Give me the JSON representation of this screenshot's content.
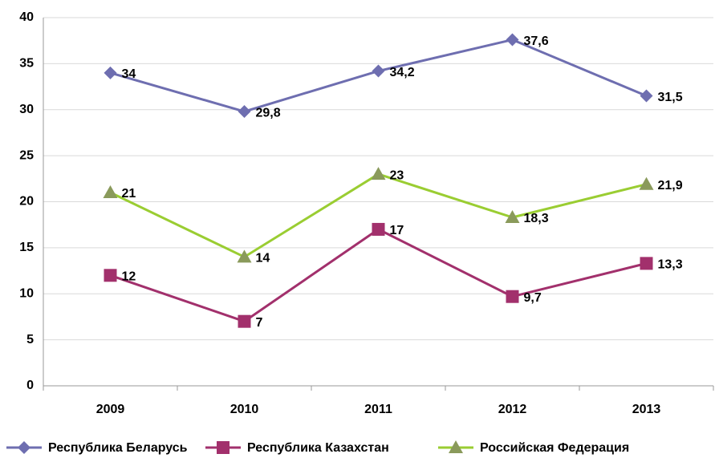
{
  "chart_data": {
    "type": "line",
    "categories": [
      "2009",
      "2010",
      "2011",
      "2012",
      "2013"
    ],
    "series": [
      {
        "name": "Республика Беларусь",
        "color": "#6e6eb0",
        "marker": "diamond",
        "values": [
          34,
          29.8,
          34.2,
          37.6,
          31.5
        ],
        "value_labels": [
          "34",
          "29,8",
          "34,2",
          "37,6",
          "31,5"
        ]
      },
      {
        "name": "Республика Казахстан",
        "color": "#a2306c",
        "marker": "square",
        "values": [
          12,
          7,
          17,
          9.7,
          13.3
        ],
        "value_labels": [
          "12",
          "7",
          "17",
          "9,7",
          "13,3"
        ]
      },
      {
        "name": "Российская Федерация",
        "color": "#9acd32",
        "marker": "triangle",
        "marker_color": "#8a9a5b",
        "values": [
          21,
          14,
          23,
          18.3,
          21.9
        ],
        "value_labels": [
          "21",
          "14",
          "23",
          "18,3",
          "21,9"
        ]
      }
    ],
    "ylim": [
      0,
      40
    ],
    "yticks": [
      0,
      5,
      10,
      15,
      20,
      25,
      30,
      35,
      40
    ],
    "grid": true,
    "legend": "bottom"
  }
}
